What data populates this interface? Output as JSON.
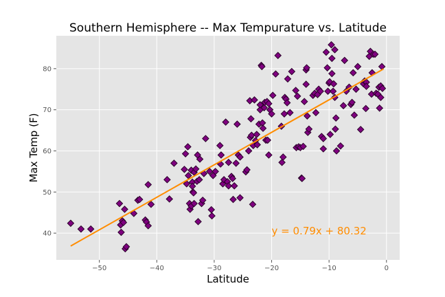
{
  "chart_data": {
    "type": "scatter",
    "title": "Southern Hemisphere -- Max Tempurature vs. Latitude",
    "xlabel": "Latitude",
    "ylabel": "Max Temp (F)",
    "xlim": [
      -57.5,
      2.3
    ],
    "ylim": [
      33.5,
      88.0
    ],
    "xticks": [
      -50,
      -40,
      -30,
      -20,
      -10,
      0
    ],
    "xtick_labels": [
      "−50",
      "−40",
      "−30",
      "−20",
      "−10",
      "0"
    ],
    "yticks": [
      40,
      50,
      60,
      70,
      80
    ],
    "ytick_labels": [
      "40",
      "50",
      "60",
      "70",
      "80"
    ],
    "grid": true,
    "background": "#e5e5e5",
    "marker_fill": "#800080",
    "marker_edge": "#2a002a",
    "line_color": "#ff8c00",
    "regression": {
      "slope": 0.79,
      "intercept": 80.32,
      "x_range": [
        -55,
        -0.5
      ]
    },
    "annotation": {
      "text": "y = 0.79x + 80.32",
      "x": -20,
      "y": 40.5
    },
    "points": [
      [
        -55.0,
        42.4
      ],
      [
        -53.2,
        41.0
      ],
      [
        -51.5,
        41.0
      ],
      [
        -46.5,
        47.2
      ],
      [
        -46.3,
        42.0
      ],
      [
        -46.2,
        40.2
      ],
      [
        -46.0,
        43.0
      ],
      [
        -45.8,
        42.6
      ],
      [
        -45.6,
        45.8
      ],
      [
        -45.5,
        36.2
      ],
      [
        -45.3,
        36.7
      ],
      [
        -44.0,
        44.8
      ],
      [
        -43.3,
        48.0
      ],
      [
        -43.0,
        48.2
      ],
      [
        -42.0,
        43.2
      ],
      [
        -41.8,
        42.7
      ],
      [
        -41.5,
        41.8
      ],
      [
        -41.5,
        51.8
      ],
      [
        -41.0,
        47.0
      ],
      [
        -38.2,
        53.0
      ],
      [
        -37.8,
        48.3
      ],
      [
        -37.0,
        57.0
      ],
      [
        -35.2,
        55.5
      ],
      [
        -35.0,
        59.3
      ],
      [
        -34.8,
        52.0
      ],
      [
        -34.6,
        61.0
      ],
      [
        -34.5,
        54.0
      ],
      [
        -34.3,
        47.2
      ],
      [
        -34.2,
        45.8
      ],
      [
        -34.0,
        46.6
      ],
      [
        -34.0,
        55.3
      ],
      [
        -33.8,
        52.4
      ],
      [
        -33.8,
        51.4
      ],
      [
        -33.7,
        50.0
      ],
      [
        -33.6,
        49.8
      ],
      [
        -33.5,
        47.2
      ],
      [
        -33.5,
        54.8
      ],
      [
        -33.2,
        55.6
      ],
      [
        -33.0,
        52.6
      ],
      [
        -32.9,
        59.0
      ],
      [
        -32.8,
        42.8
      ],
      [
        -32.6,
        53.0
      ],
      [
        -32.5,
        58.0
      ],
      [
        -32.2,
        47.2
      ],
      [
        -32.0,
        48.0
      ],
      [
        -31.8,
        54.5
      ],
      [
        -31.5,
        63.0
      ],
      [
        -30.8,
        55.0
      ],
      [
        -30.5,
        45.7
      ],
      [
        -30.4,
        44.2
      ],
      [
        -30.2,
        54.0
      ],
      [
        -29.8,
        55.0
      ],
      [
        -29.0,
        61.3
      ],
      [
        -28.9,
        56.8
      ],
      [
        -28.8,
        59.0
      ],
      [
        -28.5,
        52.0
      ],
      [
        -28.3,
        53.0
      ],
      [
        -28.0,
        67.0
      ],
      [
        -27.7,
        52.5
      ],
      [
        -27.5,
        51.5
      ],
      [
        -27.5,
        57.2
      ],
      [
        -27.0,
        53.8
      ],
      [
        -26.8,
        53.3
      ],
      [
        -26.7,
        48.2
      ],
      [
        -26.5,
        51.5
      ],
      [
        -26.2,
        57.0
      ],
      [
        -26.0,
        66.5
      ],
      [
        -25.8,
        59.0
      ],
      [
        -25.5,
        48.6
      ],
      [
        -25.5,
        58.5
      ],
      [
        -24.5,
        54.9
      ],
      [
        -24.3,
        55.4
      ],
      [
        -24.0,
        60.0
      ],
      [
        -23.8,
        72.2
      ],
      [
        -23.7,
        63.3
      ],
      [
        -23.6,
        67.8
      ],
      [
        -23.5,
        63.8
      ],
      [
        -23.3,
        47.0
      ],
      [
        -23.2,
        61.3
      ],
      [
        -23.0,
        72.4
      ],
      [
        -22.8,
        62.5
      ],
      [
        -22.6,
        64.0
      ],
      [
        -22.5,
        61.5
      ],
      [
        -22.2,
        66.5
      ],
      [
        -22.0,
        70.0
      ],
      [
        -22.0,
        71.2
      ],
      [
        -21.8,
        80.8
      ],
      [
        -21.7,
        80.5
      ],
      [
        -21.6,
        66.8
      ],
      [
        -21.5,
        65.5
      ],
      [
        -21.3,
        70.5
      ],
      [
        -21.2,
        71.8
      ],
      [
        -21.0,
        62.6
      ],
      [
        -20.8,
        72.0
      ],
      [
        -20.7,
        62.6
      ],
      [
        -20.5,
        59.0
      ],
      [
        -20.5,
        71.5
      ],
      [
        -20.3,
        70.0
      ],
      [
        -20.0,
        69.0
      ],
      [
        -19.8,
        73.5
      ],
      [
        -19.3,
        78.7
      ],
      [
        -18.9,
        83.2
      ],
      [
        -18.3,
        66.0
      ],
      [
        -18.2,
        57.2
      ],
      [
        -18.0,
        58.5
      ],
      [
        -17.8,
        69.0
      ],
      [
        -17.7,
        73.0
      ],
      [
        -17.5,
        72.6
      ],
      [
        -17.3,
        71.7
      ],
      [
        -17.2,
        77.5
      ],
      [
        -16.8,
        69.3
      ],
      [
        -16.5,
        79.3
      ],
      [
        -15.8,
        74.7
      ],
      [
        -15.7,
        60.8
      ],
      [
        -15.5,
        73.3
      ],
      [
        -15.3,
        61.0
      ],
      [
        -15.0,
        60.8
      ],
      [
        -14.8,
        53.4
      ],
      [
        -14.7,
        53.3
      ],
      [
        -14.5,
        61.1
      ],
      [
        -14.3,
        72.0
      ],
      [
        -14.0,
        79.7
      ],
      [
        -14.0,
        76.2
      ],
      [
        -13.9,
        80.2
      ],
      [
        -13.8,
        68.5
      ],
      [
        -13.7,
        64.5
      ],
      [
        -13.5,
        65.3
      ],
      [
        -12.8,
        73.5
      ],
      [
        -12.5,
        74.0
      ],
      [
        -12.3,
        69.3
      ],
      [
        -12.0,
        73.7
      ],
      [
        -11.8,
        75.0
      ],
      [
        -11.5,
        74.5
      ],
      [
        -11.3,
        63.5
      ],
      [
        -11.0,
        63.0
      ],
      [
        -11.0,
        60.5
      ],
      [
        -10.5,
        84.0
      ],
      [
        -10.3,
        80.2
      ],
      [
        -10.2,
        74.5
      ],
      [
        -10.0,
        76.5
      ],
      [
        -9.9,
        76.8
      ],
      [
        -9.8,
        64.0
      ],
      [
        -9.6,
        85.8
      ],
      [
        -9.5,
        82.5
      ],
      [
        -9.5,
        78.8
      ],
      [
        -9.3,
        74.5
      ],
      [
        -9.2,
        76.3
      ],
      [
        -9.0,
        84.6
      ],
      [
        -9.0,
        73.0
      ],
      [
        -8.9,
        65.3
      ],
      [
        -8.8,
        68.0
      ],
      [
        -8.7,
        60.0
      ],
      [
        -8.0,
        61.2
      ],
      [
        -7.5,
        71.0
      ],
      [
        -7.3,
        82.0
      ],
      [
        -7.0,
        74.5
      ],
      [
        -6.5,
        75.5
      ],
      [
        -6.2,
        71.3
      ],
      [
        -6.0,
        71.8
      ],
      [
        -5.8,
        79.0
      ],
      [
        -5.6,
        68.7
      ],
      [
        -5.3,
        75.0
      ],
      [
        -5.0,
        80.5
      ],
      [
        -4.5,
        65.2
      ],
      [
        -4.0,
        76.3
      ],
      [
        -3.8,
        77.0
      ],
      [
        -3.6,
        70.3
      ],
      [
        -3.5,
        76.7
      ],
      [
        -3.5,
        75.7
      ],
      [
        -3.0,
        83.0
      ],
      [
        -2.8,
        84.2
      ],
      [
        -2.6,
        73.8
      ],
      [
        -2.5,
        79.0
      ],
      [
        -2.3,
        83.5
      ],
      [
        -2.0,
        83.5
      ],
      [
        -1.8,
        74.0
      ],
      [
        -1.5,
        73.8
      ],
      [
        -1.3,
        75.5
      ],
      [
        -1.2,
        70.4
      ],
      [
        -1.0,
        73.0
      ],
      [
        -1.0,
        75.8
      ],
      [
        -0.8,
        80.5
      ],
      [
        -0.7,
        75.2
      ]
    ]
  }
}
